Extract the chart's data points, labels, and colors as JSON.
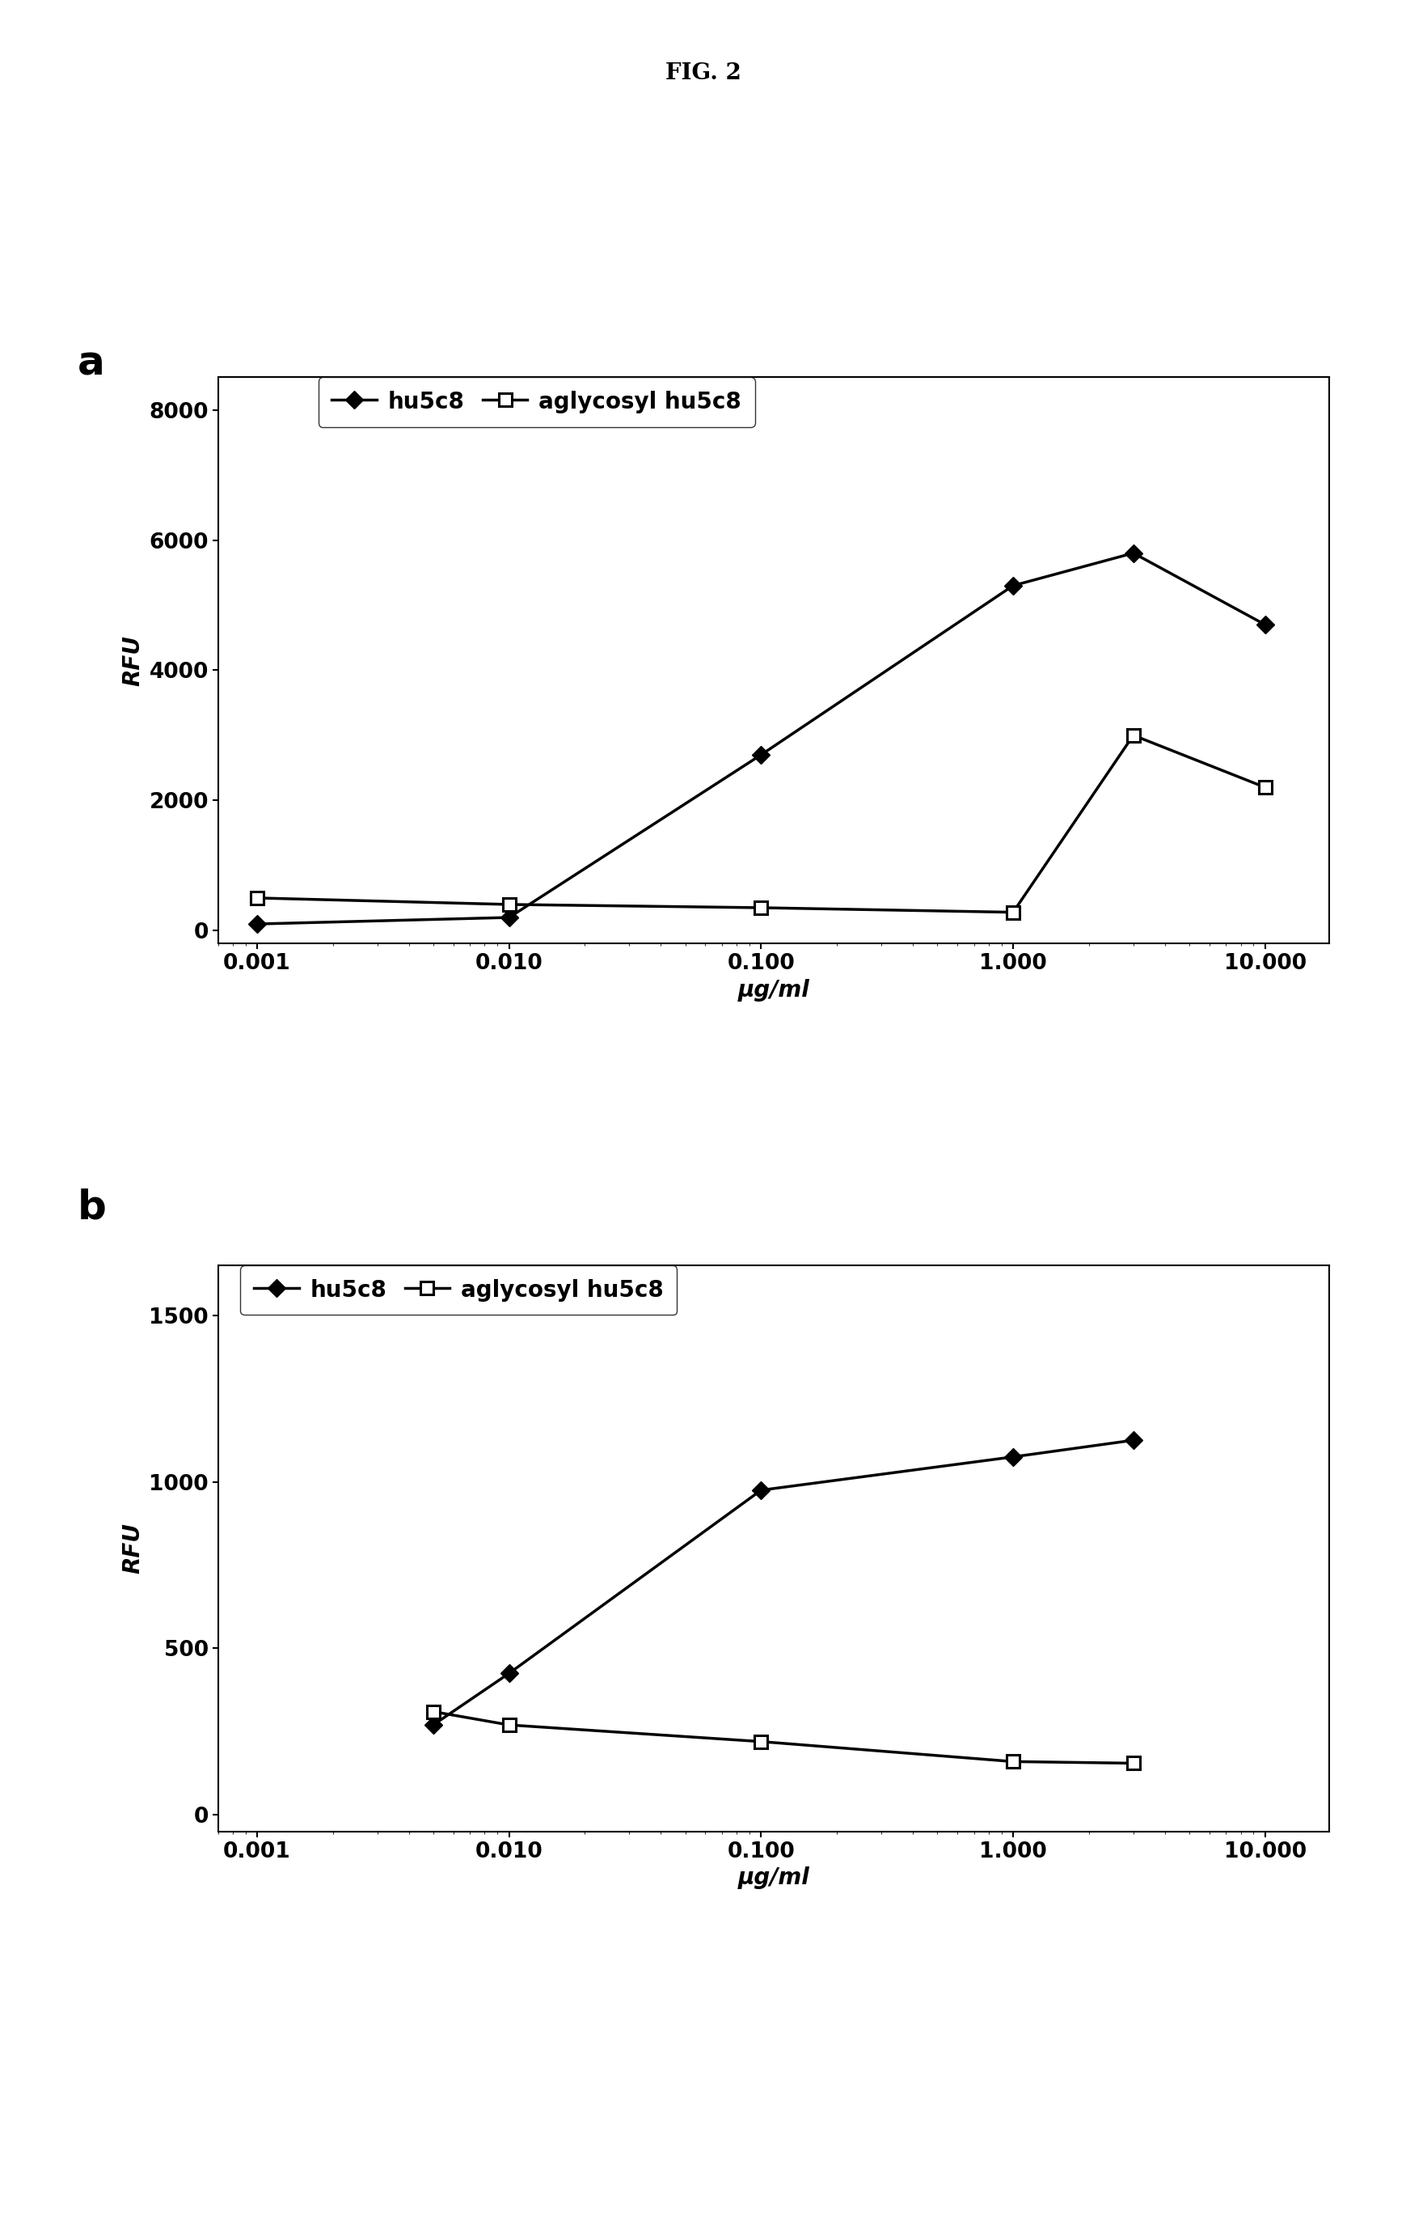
{
  "fig_title": "FIG. 2",
  "panel_a": {
    "label": "a",
    "series": [
      {
        "name": "hu5c8",
        "x_full": [
          0.001,
          0.01,
          0.1,
          1.0,
          3.0,
          10.0
        ],
        "y": [
          100,
          200,
          2700,
          5300,
          5800,
          4700
        ],
        "marker": "D",
        "markersize": 11,
        "color": "#000000",
        "fillstyle": "full",
        "linewidth": 2.5
      },
      {
        "name": "aglycosyl hu5c8",
        "x_full": [
          0.001,
          0.01,
          0.1,
          1.0,
          3.0,
          10.0
        ],
        "y": [
          500,
          400,
          350,
          280,
          3000,
          2200
        ],
        "marker": "s",
        "markersize": 11,
        "color": "#000000",
        "fillstyle": "none",
        "linewidth": 2.5
      }
    ],
    "ylabel": "RFU",
    "xlabel": "μg/ml",
    "ylim": [
      -200,
      8500
    ],
    "yticks": [
      0,
      2000,
      4000,
      6000,
      8000
    ],
    "xlim": [
      0.0007,
      18
    ],
    "xticks": [
      0.001,
      0.01,
      0.1,
      1.0,
      10.0
    ],
    "xticklabels": [
      "0.001",
      "0.010",
      "0.100",
      "1.000",
      "10.000"
    ]
  },
  "panel_b": {
    "label": "b",
    "series": [
      {
        "name": "hu5c8",
        "x_full": [
          0.005,
          0.01,
          0.1,
          1.0,
          3.0
        ],
        "y": [
          270,
          425,
          975,
          1075,
          1125
        ],
        "marker": "D",
        "markersize": 11,
        "color": "#000000",
        "fillstyle": "full",
        "linewidth": 2.5
      },
      {
        "name": "aglycosyl hu5c8",
        "x_full": [
          0.005,
          0.01,
          0.1,
          1.0,
          3.0
        ],
        "y": [
          310,
          270,
          220,
          160,
          155
        ],
        "marker": "s",
        "markersize": 11,
        "color": "#000000",
        "fillstyle": "none",
        "linewidth": 2.5
      }
    ],
    "ylabel": "RFU",
    "xlabel": "μg/ml",
    "ylim": [
      -50,
      1650
    ],
    "yticks": [
      0,
      500,
      1000,
      1500
    ],
    "xlim": [
      0.0007,
      18
    ],
    "xticks": [
      0.001,
      0.01,
      0.1,
      1.0,
      10.0
    ],
    "xticklabels": [
      "0.001",
      "0.010",
      "0.100",
      "1.000",
      "10.000"
    ]
  },
  "background_color": "#ffffff",
  "title_fontsize": 20,
  "panel_label_fontsize": 36,
  "tick_fontsize": 19,
  "axis_label_fontsize": 20,
  "legend_fontsize": 20
}
